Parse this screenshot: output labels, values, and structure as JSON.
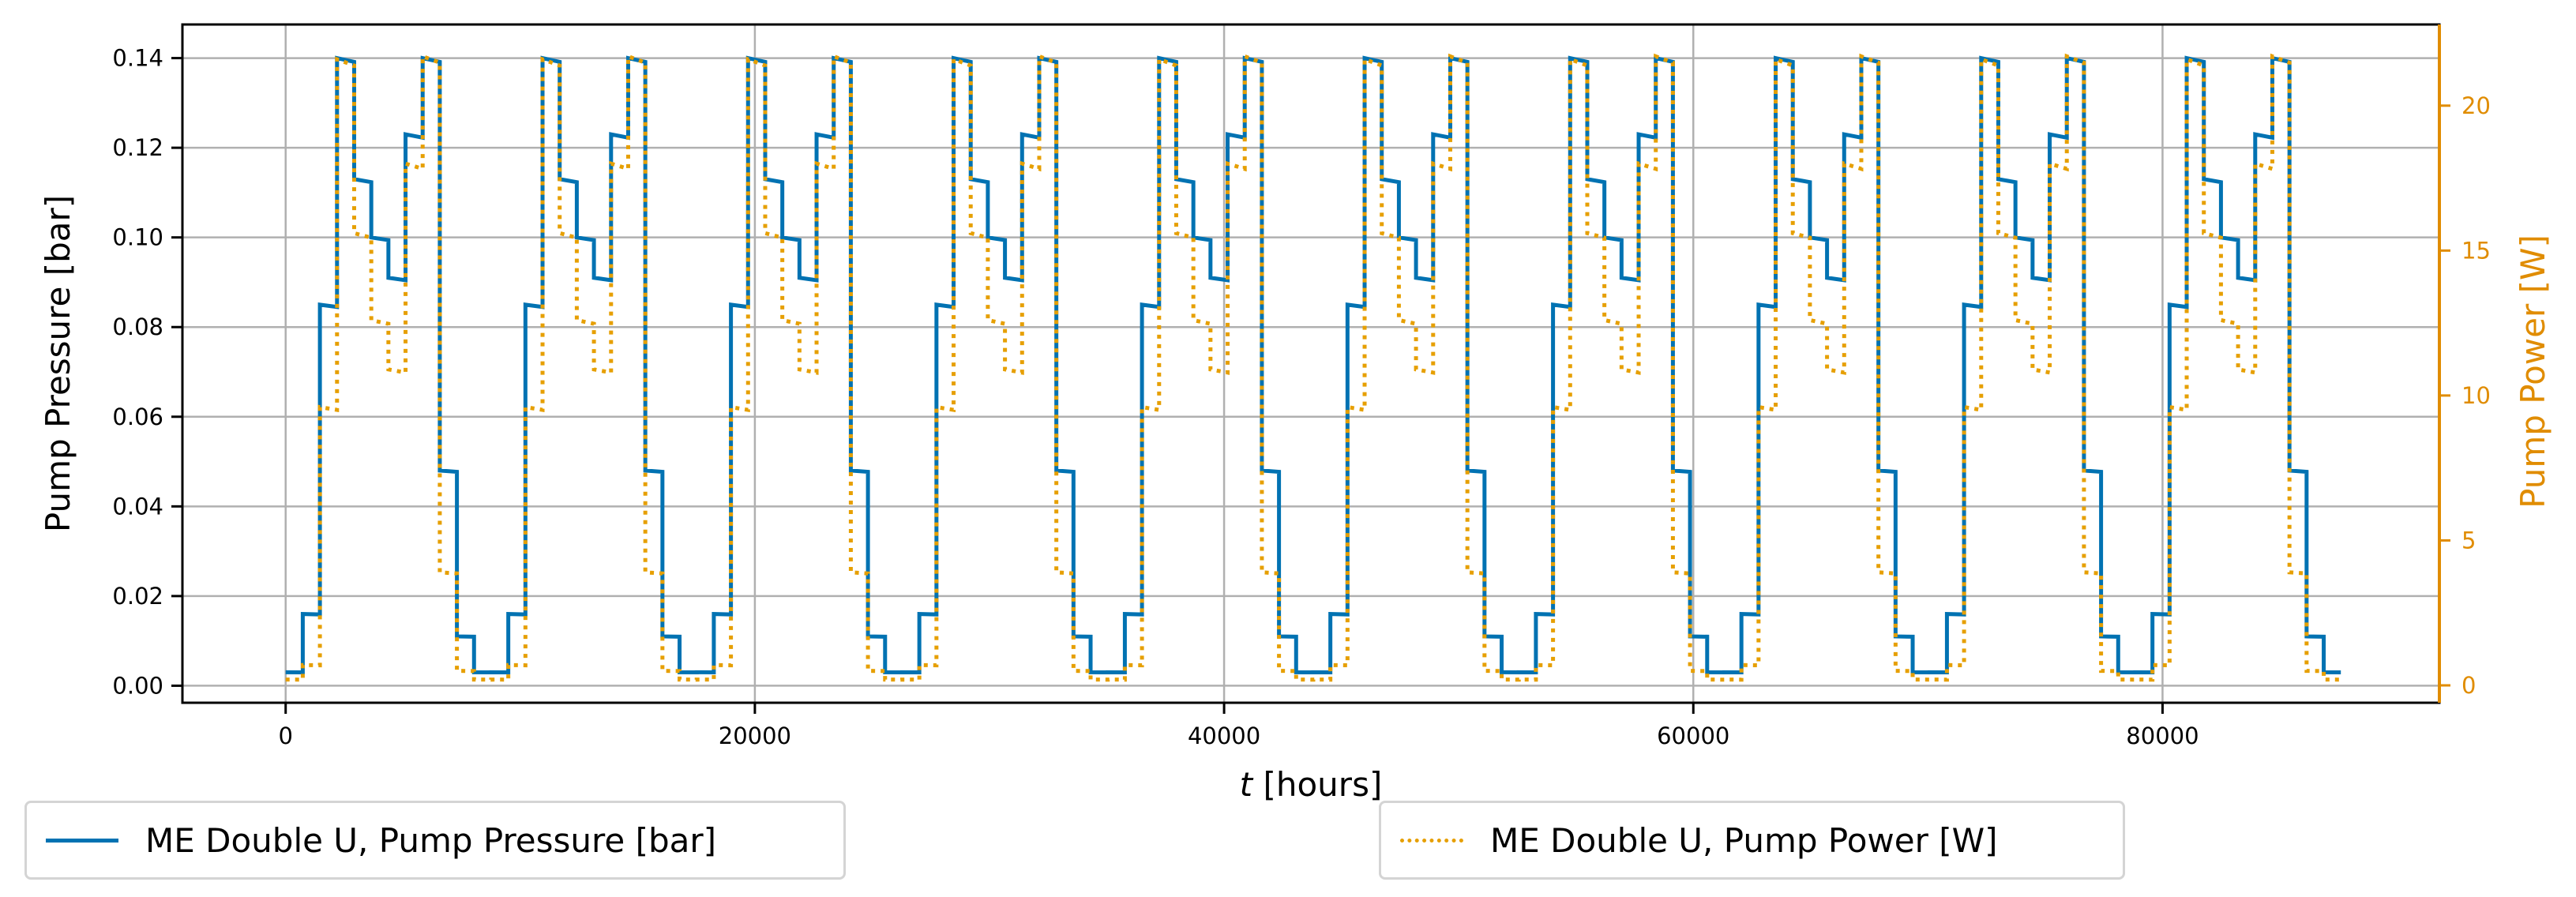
{
  "chart_data": {
    "type": "line",
    "subtype": "step",
    "title": "",
    "xlabel": "t [hours]",
    "ylabel": "Pump Pressure [bar]",
    "ylabel_right": "Pump Power [W]",
    "x_ticks": [
      0,
      20000,
      40000,
      60000,
      80000
    ],
    "x_tick_labels": [
      "0",
      "20000",
      "40000",
      "60000",
      "80000"
    ],
    "y_ticks": [
      0.0,
      0.02,
      0.04,
      0.06,
      0.08,
      0.1,
      0.12,
      0.14
    ],
    "y_tick_labels": [
      "0.00",
      "0.02",
      "0.04",
      "0.06",
      "0.08",
      "0.10",
      "0.12",
      "0.14"
    ],
    "y_right_ticks": [
      0,
      5,
      10,
      15,
      20
    ],
    "y_right_tick_labels": [
      "0",
      "5",
      "10",
      "15",
      "20"
    ],
    "xlim": [
      -4400,
      91800
    ],
    "ylim": [
      -0.0038,
      0.1475
    ],
    "ylim_right": [
      -0.6,
      22.8
    ],
    "grid": true,
    "legend_position": "below plot (two boxes: left and right)",
    "cycle_period_hours": 8760,
    "num_cycles": 10,
    "cycle_step_hours": [
      0,
      730,
      1460,
      2190,
      2920,
      3650,
      4380,
      5110,
      5840,
      6570,
      7300,
      8030,
      8760
    ],
    "series": [
      {
        "name": "ME Double U, Pump Pressure [bar]",
        "axis": "left",
        "color": "#0072b2",
        "linestyle": "solid",
        "cycle_values": [
          0.003,
          0.016,
          0.085,
          0.14,
          0.113,
          0.1,
          0.091,
          0.123,
          0.14,
          0.048,
          0.011,
          0.003
        ],
        "final_step_end_hours": 87600
      },
      {
        "name": "ME Double U, Pump Power [W]",
        "axis": "right",
        "color": "#e69f00",
        "linestyle": "dotted",
        "cycle_values": [
          0.2,
          0.7,
          9.6,
          21.6,
          15.6,
          12.6,
          10.9,
          18.0,
          21.7,
          3.9,
          0.5,
          0.2
        ],
        "final_step_end_hours": 87600
      }
    ]
  },
  "legend": {
    "left_label": "ME Double U, Pump Pressure [bar]",
    "right_label": "ME Double U, Pump Power [W]"
  },
  "colors": {
    "pressure": "#0072b2",
    "power": "#e69f00",
    "right_axis": "#e08c00",
    "grid": "#b0b0b0"
  }
}
